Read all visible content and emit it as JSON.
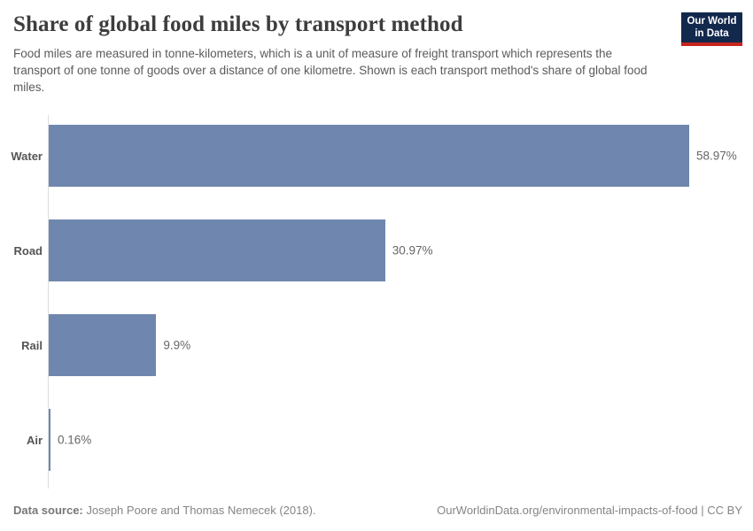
{
  "header": {
    "title": "Share of global food miles by transport method",
    "subtitle": "Food miles are measured in tonne-kilometers, which is a unit of measure of freight transport which represents the transport of one tonne of goods over a distance of one kilometre. Shown is each transport method's share of global food miles.",
    "logo": {
      "line1": "Our World",
      "line2": "in Data",
      "bg_color": "#12294d",
      "accent_color": "#c7241e"
    }
  },
  "chart_data": {
    "type": "bar",
    "orientation": "horizontal",
    "title": "Share of global food miles by transport method",
    "categories": [
      "Water",
      "Road",
      "Rail",
      "Air"
    ],
    "values": [
      58.97,
      30.97,
      9.9,
      0.16
    ],
    "value_labels": [
      "58.97%",
      "30.97%",
      "9.9%",
      "0.16%"
    ],
    "xlim": [
      0,
      58.97
    ],
    "bar_color": "#6f87ae",
    "grid": false,
    "legend": "none"
  },
  "footer": {
    "source_label": "Data source:",
    "source_text": " Joseph Poore and Thomas Nemecek (2018).",
    "link_text": "OurWorldinData.org/environmental-impacts-of-food | CC BY"
  }
}
